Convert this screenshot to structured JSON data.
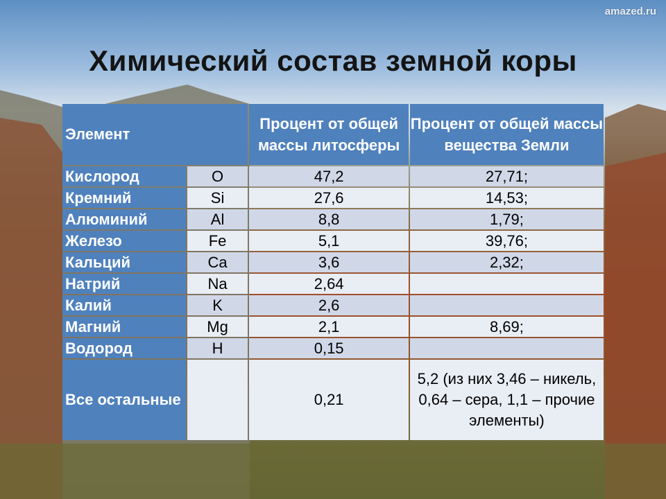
{
  "watermark": "amazed.ru",
  "title": "Химический состав земной коры",
  "table": {
    "headers": [
      "Элемент",
      "Процент от общей массы литосферы",
      "Процент от общей массы вещества Земли"
    ],
    "rows": [
      {
        "name": "Кислород",
        "symbol": "O",
        "litho": "47,2",
        "earth": "27,71;"
      },
      {
        "name": "Кремний",
        "symbol": "Si",
        "litho": "27,6",
        "earth": "14,53;"
      },
      {
        "name": "Алюминий",
        "symbol": "Al",
        "litho": "8,8",
        "earth": "1,79;"
      },
      {
        "name": "Железо",
        "symbol": "Fe",
        "litho": "5,1",
        "earth": "39,76;"
      },
      {
        "name": "Кальций",
        "symbol": "Ca",
        "litho": "3,6",
        "earth": "2,32;"
      },
      {
        "name": "Натрий",
        "symbol": "Na",
        "litho": "2,64",
        "earth": ""
      },
      {
        "name": "Калий",
        "symbol": "K",
        "litho": "2,6",
        "earth": ""
      },
      {
        "name": "Магний",
        "symbol": "Mg",
        "litho": "2,1",
        "earth": "8,69;"
      },
      {
        "name": "Водород",
        "symbol": "H",
        "litho": "0,15",
        "earth": ""
      },
      {
        "name": "Все остальные",
        "symbol": "",
        "litho": "0,21",
        "earth": "5,2 (из них 3,46 – никель, 0,64 – сера, 1,1 – прочие элементы)"
      }
    ]
  }
}
